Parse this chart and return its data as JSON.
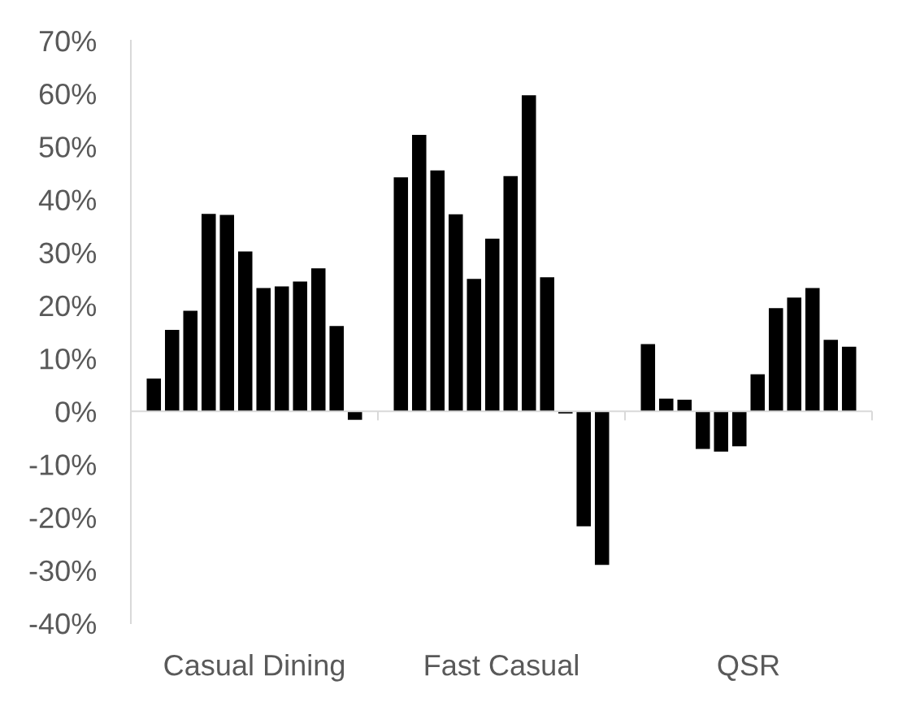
{
  "chart_data": {
    "type": "bar",
    "categories": [
      "Casual Dining",
      "Fast Casual",
      "QSR"
    ],
    "series": [
      {
        "color": "#000000",
        "values": [
          6.2,
          44.2,
          12.7
        ]
      },
      {
        "color": "#000000",
        "values": [
          15.4,
          52.2,
          2.4
        ]
      },
      {
        "color": "#000000",
        "values": [
          19.0,
          45.5,
          2.2
        ]
      },
      {
        "color": "#000000",
        "values": [
          37.3,
          37.2,
          -7.1
        ]
      },
      {
        "color": "#000000",
        "values": [
          37.1,
          25.0,
          -7.6
        ]
      },
      {
        "color": "#000000",
        "values": [
          30.2,
          32.6,
          -6.6
        ]
      },
      {
        "color": "#000000",
        "values": [
          23.3,
          44.4,
          7.0
        ]
      },
      {
        "color": "#000000",
        "values": [
          23.6,
          59.7,
          19.5
        ]
      },
      {
        "color": "#000000",
        "values": [
          24.5,
          25.3,
          21.5
        ]
      },
      {
        "color": "#000000",
        "values": [
          27.0,
          -0.4,
          23.3
        ]
      },
      {
        "color": "#000000",
        "values": [
          16.1,
          -21.7,
          13.5
        ]
      },
      {
        "color": "#000000",
        "values": [
          -1.6,
          -29.0,
          12.2
        ]
      }
    ],
    "ylim": [
      -40,
      70
    ],
    "yticks": [
      {
        "value": -40,
        "label": "-40%"
      },
      {
        "value": -30,
        "label": "-30%"
      },
      {
        "value": -20,
        "label": "-20%"
      },
      {
        "value": -10,
        "label": "-10%"
      },
      {
        "value": 0,
        "label": "0%"
      },
      {
        "value": 10,
        "label": "10%"
      },
      {
        "value": 20,
        "label": "20%"
      },
      {
        "value": 30,
        "label": "30%"
      },
      {
        "value": 40,
        "label": "40%"
      },
      {
        "value": 50,
        "label": "50%"
      },
      {
        "value": 60,
        "label": "60%"
      },
      {
        "value": 70,
        "label": "70%"
      }
    ],
    "ref_lines": [
      {
        "axis": "y",
        "value": 0,
        "color": "#d9d9d9"
      }
    ],
    "grid": false
  }
}
